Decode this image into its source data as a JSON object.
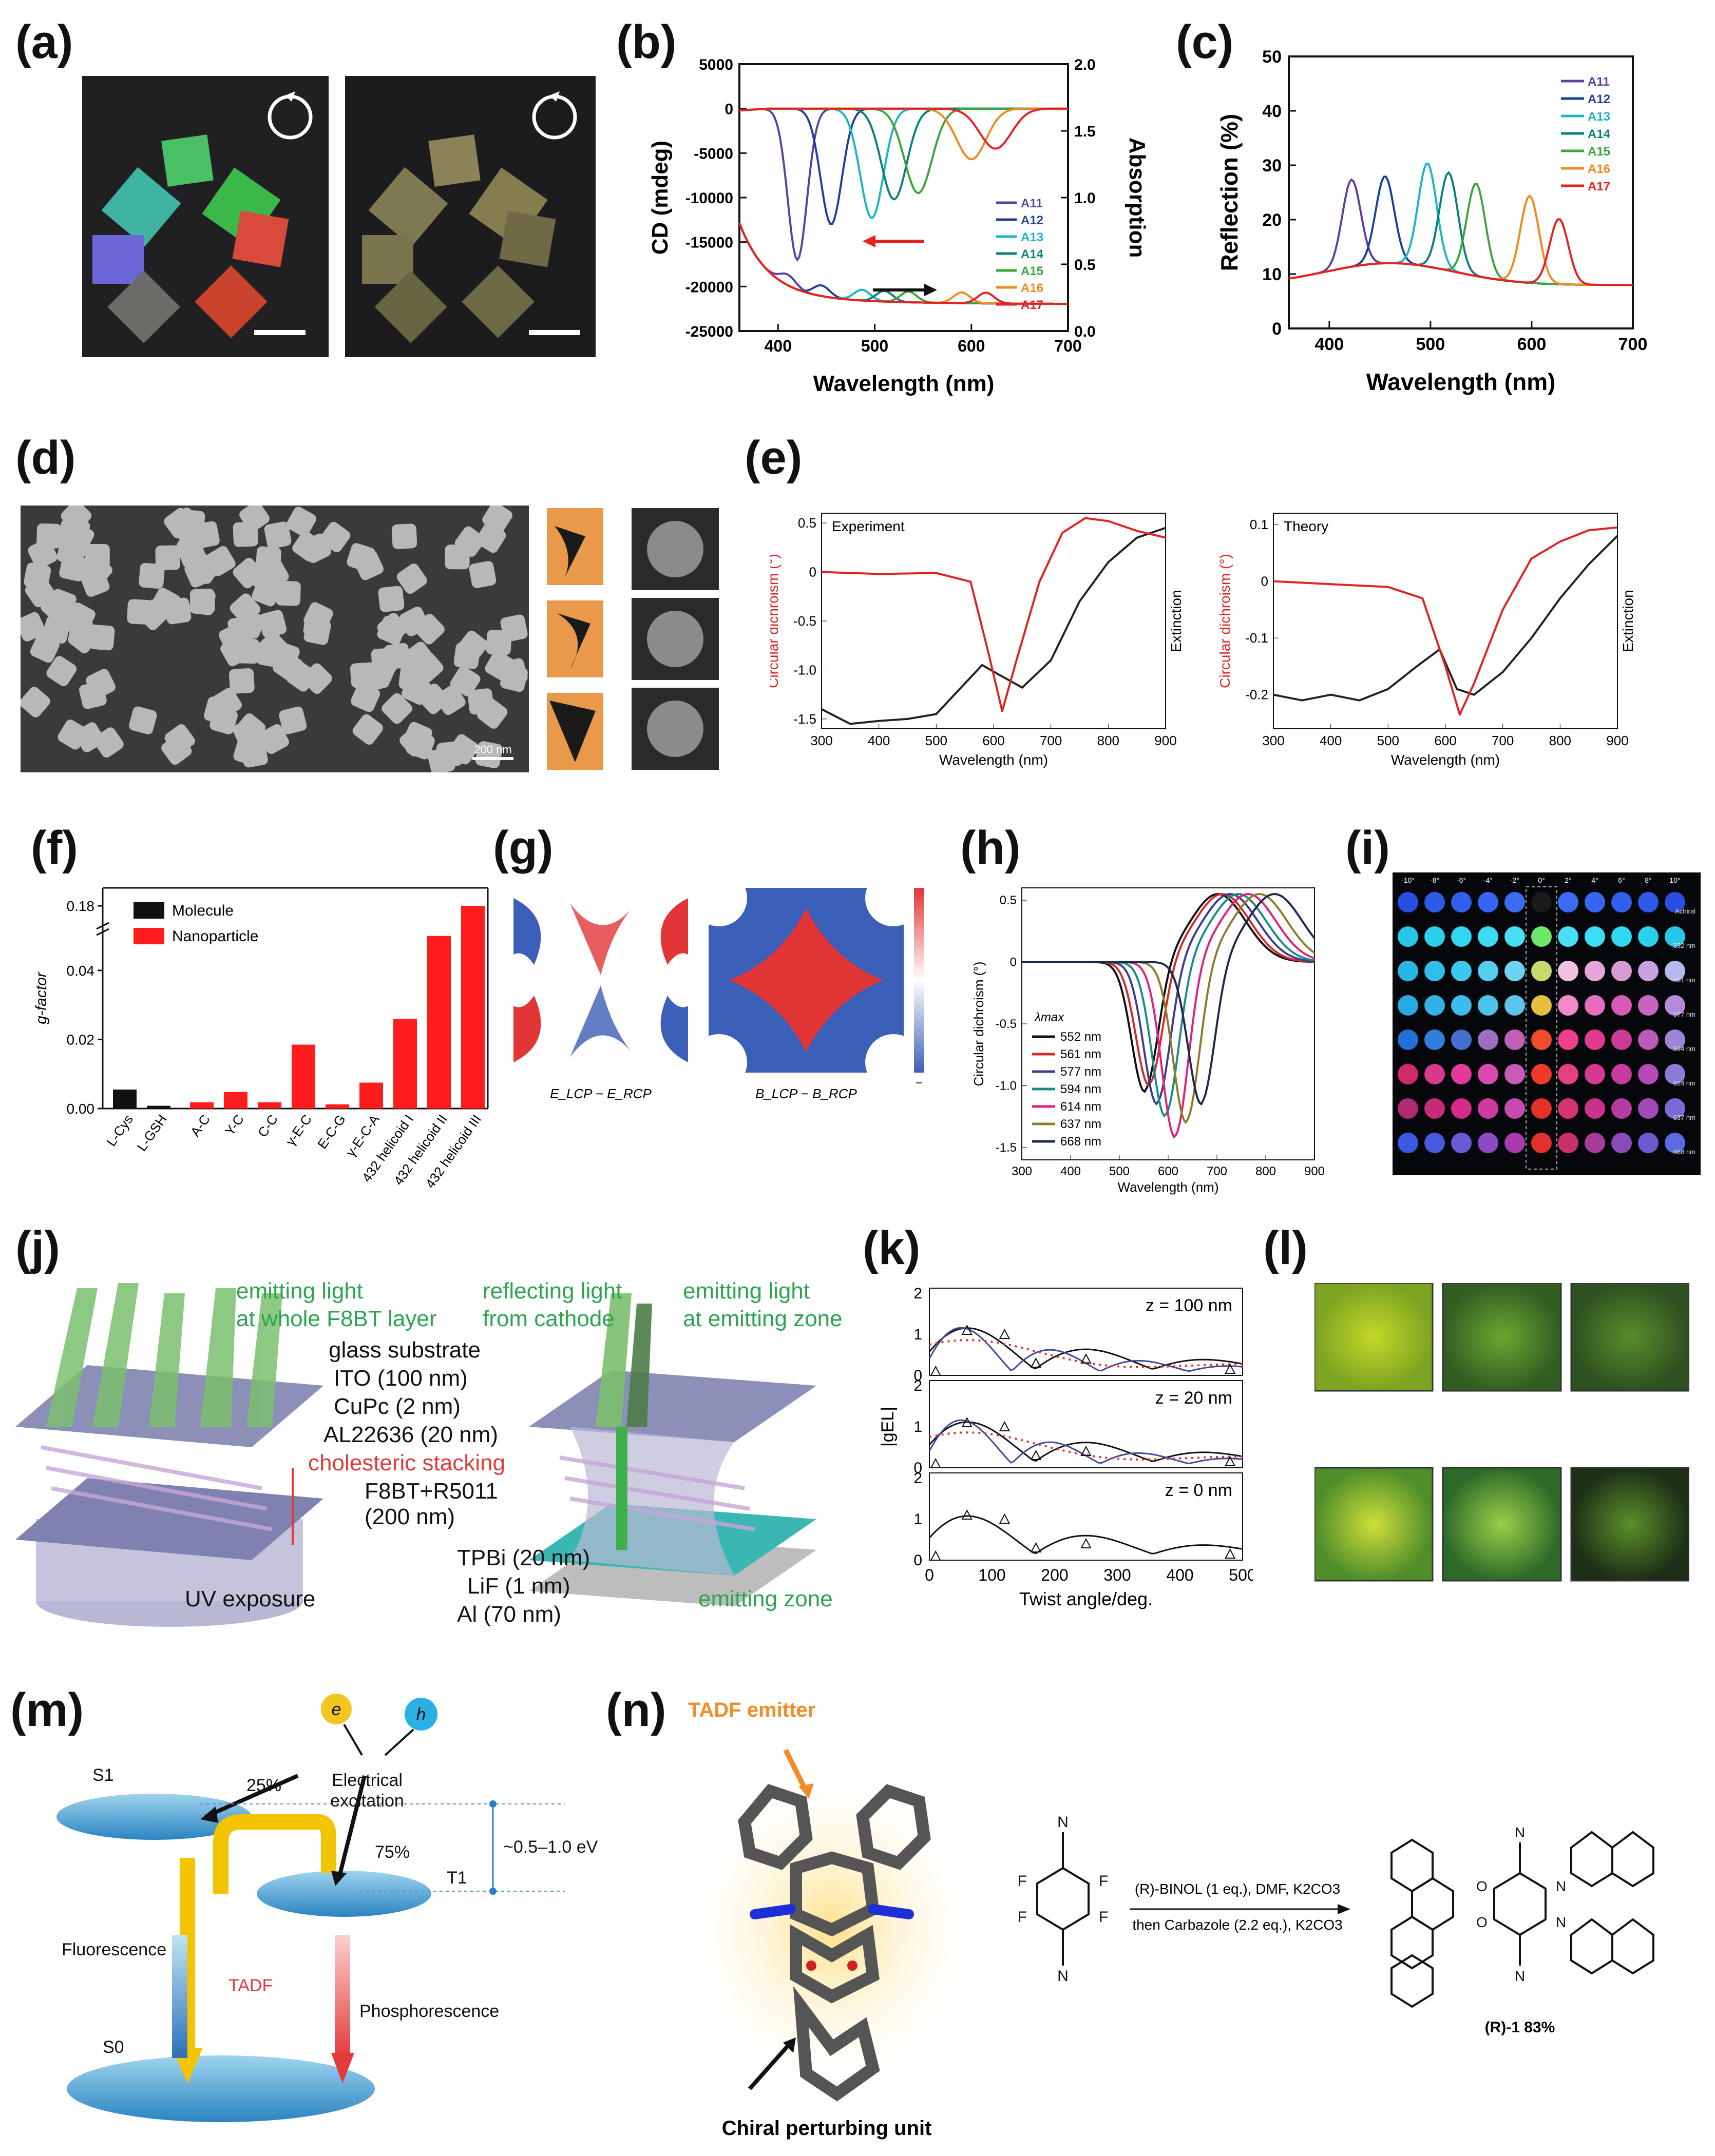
{
  "panels": {
    "a": {
      "label": "(a)"
    },
    "b": {
      "label": "(b)",
      "chart_data": {
        "type": "line",
        "xlabel": "Wavelength (nm)",
        "ylabel": "CD (mdeg)",
        "ylabel_right": "Absorption",
        "xlim": [
          360,
          700
        ],
        "ylim": [
          -25000,
          5000
        ],
        "ylim_right": [
          0.0,
          2.0
        ],
        "x_ticks": [
          "400",
          "500",
          "600",
          "700"
        ],
        "y_ticks": [
          "5000",
          "0",
          "-5000",
          "-10000",
          "-15000",
          "-20000",
          "-25000"
        ],
        "y_ticks_right": [
          "2.0",
          "1.5",
          "1.0",
          "0.5",
          "0.0"
        ],
        "legend": [
          "A11",
          "A12",
          "A13",
          "A14",
          "A15",
          "A16",
          "A17"
        ],
        "colors": [
          "#5b3fa3",
          "#1f3f9c",
          "#19b5c8",
          "#0d7f7a",
          "#3aa53a",
          "#f2891d",
          "#e52222"
        ],
        "cd_peaks_nm": [
          420,
          455,
          497,
          520,
          545,
          600,
          625
        ],
        "cd_peaks_mdeg": [
          -17000,
          -13000,
          -12300,
          -10200,
          -9500,
          -5700,
          -4500
        ]
      }
    },
    "c": {
      "label": "(c)",
      "chart_data": {
        "type": "line",
        "xlabel": "Wavelength (nm)",
        "ylabel": "Reflection (%)",
        "xlim": [
          360,
          700
        ],
        "ylim": [
          0,
          50
        ],
        "x_ticks": [
          "400",
          "500",
          "600",
          "700"
        ],
        "y_ticks": [
          "0",
          "10",
          "20",
          "30",
          "40",
          "50"
        ],
        "legend": [
          "A11",
          "A12",
          "A13",
          "A14",
          "A15",
          "A16",
          "A17"
        ],
        "colors": [
          "#5b3fa3",
          "#1f3f9c",
          "#19b5c8",
          "#0d7f7a",
          "#3aa53a",
          "#f2891d",
          "#e52222"
        ],
        "peaks_nm": [
          422,
          455,
          497,
          518,
          545,
          598,
          627
        ],
        "peaks_pct": [
          28,
          28,
          31,
          30,
          29,
          28,
          24
        ]
      }
    },
    "d": {
      "label": "(d)",
      "scale_bar": "200 nm"
    },
    "e": {
      "label": "(e)",
      "charts": [
        {
          "type": "line",
          "annotation": "Experiment",
          "xlabel": "Wavelength (nm)",
          "ylabel": "Circular dichroism (°)",
          "ylabel_right": "Extinction",
          "xlim": [
            300,
            900
          ],
          "ylim": [
            -1.6,
            0.6
          ],
          "x_ticks": [
            "300",
            "400",
            "500",
            "600",
            "700",
            "800",
            "900"
          ],
          "y_ticks": [
            "0.5",
            "0",
            "-0.5",
            "-1.0",
            "-1.5"
          ],
          "cd_x": [
            300,
            400,
            500,
            560,
            590,
            615,
            640,
            680,
            720,
            760,
            800,
            850,
            900
          ],
          "cd_y": [
            0.0,
            -0.02,
            -0.01,
            -0.1,
            -0.8,
            -1.42,
            -0.9,
            -0.1,
            0.4,
            0.55,
            0.52,
            0.42,
            0.35
          ],
          "ext_x": [
            300,
            350,
            400,
            450,
            500,
            540,
            580,
            610,
            650,
            700,
            750,
            800,
            850,
            900
          ],
          "ext_y": [
            -1.4,
            -1.55,
            -1.52,
            -1.5,
            -1.45,
            -1.2,
            -0.95,
            -1.05,
            -1.18,
            -0.9,
            -0.3,
            0.1,
            0.35,
            0.45
          ]
        },
        {
          "type": "line",
          "annotation": "Theory",
          "xlabel": "Wavelength (nm)",
          "ylabel": "Circular dichroism (°)",
          "ylabel_right": "Extinction",
          "xlim": [
            300,
            900
          ],
          "ylim": [
            -0.26,
            0.12
          ],
          "x_ticks": [
            "300",
            "400",
            "500",
            "600",
            "700",
            "800",
            "900"
          ],
          "y_ticks": [
            "0.1",
            "0",
            "-0.1",
            "-0.2"
          ],
          "cd_x": [
            300,
            400,
            500,
            560,
            600,
            625,
            650,
            700,
            750,
            800,
            850,
            900
          ],
          "cd_y": [
            0.0,
            -0.005,
            -0.01,
            -0.03,
            -0.15,
            -0.235,
            -0.18,
            -0.05,
            0.04,
            0.07,
            0.09,
            0.095
          ],
          "ext_x": [
            300,
            350,
            400,
            450,
            500,
            550,
            590,
            620,
            650,
            700,
            750,
            800,
            850,
            900
          ],
          "ext_y": [
            -0.2,
            -0.21,
            -0.2,
            -0.21,
            -0.19,
            -0.15,
            -0.12,
            -0.19,
            -0.2,
            -0.16,
            -0.1,
            -0.03,
            0.03,
            0.08
          ]
        }
      ]
    },
    "f": {
      "label": "(f)",
      "chart_data": {
        "type": "bar",
        "ylabel": "g-factor",
        "categories": [
          "L-Cys",
          "L-GSH",
          "A-C",
          "Y-C",
          "C-C",
          "γ-E-C",
          "E-C-G",
          "γ-E-C-A",
          "432 helicoid I",
          "432 helicoid II",
          "432 helicoid III"
        ],
        "series": [
          {
            "name": "Molecule",
            "color": "#111111",
            "values": [
              0.0055,
              0.0008,
              null,
              null,
              null,
              null,
              null,
              null,
              null,
              null,
              null
            ]
          },
          {
            "name": "Nanoparticle",
            "color": "#ff1c1c",
            "values": [
              null,
              null,
              0.0018,
              0.0048,
              0.0018,
              0.0185,
              0.0012,
              0.0075,
              0.026,
              0.05,
              0.18
            ]
          }
        ],
        "y_ticks": [
          "0.00",
          "0.02",
          "0.04",
          "0.18"
        ]
      }
    },
    "g": {
      "label": "(g)",
      "map_labels": [
        "E_LCP − E_RCP",
        "B_LCP − B_RCP"
      ],
      "colorbar_top": "+",
      "colorbar_bottom": "−"
    },
    "h": {
      "label": "(h)",
      "chart_data": {
        "type": "line",
        "xlabel": "Wavelength (nm)",
        "ylabel": "Circular dichroism (°)",
        "xlim": [
          300,
          900
        ],
        "ylim": [
          -1.6,
          0.6
        ],
        "x_ticks": [
          "300",
          "400",
          "500",
          "600",
          "700",
          "800",
          "900"
        ],
        "y_ticks": [
          "0.5",
          "0",
          "-0.5",
          "-1.0",
          "-1.5"
        ],
        "legend_title": "λmax",
        "series": [
          {
            "name": "552 nm",
            "color": "#111111",
            "min_nm": 552,
            "min": -1.05
          },
          {
            "name": "561 nm",
            "color": "#d42a2a",
            "min_nm": 561,
            "min": -1.0
          },
          {
            "name": "577 nm",
            "color": "#3b3c8f",
            "min_nm": 577,
            "min": -1.15
          },
          {
            "name": "594 nm",
            "color": "#1a8a8a",
            "min_nm": 594,
            "min": -1.25
          },
          {
            "name": "614 nm",
            "color": "#e0227d",
            "min_nm": 614,
            "min": -1.42
          },
          {
            "name": "637 nm",
            "color": "#8a7c2a",
            "min_nm": 637,
            "min": -1.3
          },
          {
            "name": "668 nm",
            "color": "#1f2a4a",
            "min_nm": 668,
            "min": -1.15
          }
        ]
      }
    },
    "i": {
      "label": "(i)",
      "col_labels": [
        "-10°",
        "-8°",
        "-6°",
        "-4°",
        "-2°",
        "0°",
        "2°",
        "4°",
        "6°",
        "8°",
        "10°"
      ],
      "row_labels": [
        "Achiral",
        "552 nm",
        "561 nm",
        "577 nm",
        "594 nm",
        "614 nm",
        "637 nm",
        "668 nm"
      ]
    },
    "j": {
      "label": "(j)",
      "texts": {
        "emit_whole": "emitting light\nat whole F8BT layer",
        "reflect": "reflecting light\nfrom cathode",
        "emit_zone": "emitting light\nat emitting zone",
        "glass": "glass substrate",
        "ito": "ITO (100 nm)",
        "cupc": "CuPc (2 nm)",
        "al22636": "AL22636 (20 nm)",
        "cholesteric": "cholesteric stacking",
        "f8bt": "F8BT+R5011\n(200 nm)",
        "tpbi": "TPBi (20 nm)",
        "lif": "LiF (1 nm)",
        "al": "Al (70 nm)",
        "emitting_zone": "emitting zone",
        "uv": "UV exposure"
      }
    },
    "k": {
      "label": "(k)",
      "chart_data": {
        "type": "line",
        "xlabel": "Twist angle/deg.",
        "ylabel": "|gEL|",
        "xlim": [
          0,
          500
        ],
        "x_ticks": [
          "0",
          "100",
          "200",
          "300",
          "400",
          "500"
        ],
        "subplots": [
          {
            "title": "z = 100 nm",
            "ylim": [
              0,
              2
            ]
          },
          {
            "title": "z = 20 nm",
            "ylim": [
              0,
              2
            ]
          },
          {
            "title": "z = 0 nm",
            "ylim": [
              0,
              2
            ]
          }
        ],
        "y_ticks": [
          "0",
          "1",
          "2"
        ]
      }
    },
    "l": {
      "label": "(l)"
    },
    "m": {
      "label": "(m)",
      "texts": {
        "e": "e",
        "h": "h",
        "excitation": "Electrical\nexcitation",
        "pct25": "25%",
        "pct75": "75%",
        "s1": "S1",
        "t1": "T1",
        "s0": "S0",
        "gap": "~0.5–1.0 eV",
        "fluor": "Fluorescence",
        "tadf": "TADF",
        "phos": "Phosphorescence"
      }
    },
    "n": {
      "label": "(n)",
      "texts": {
        "tadf_emitter": "TADF emitter",
        "chiral": "Chiral perturbing unit",
        "reagent1": "(R)-BINOL (1 eq.), DMF, K2CO3",
        "reagent2": "then Carbazole (2.2 eq.), K2CO3",
        "product": "(R)-1 83%"
      }
    }
  }
}
